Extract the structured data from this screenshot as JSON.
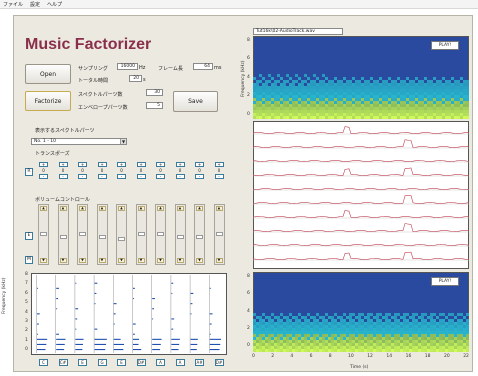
{
  "menu": [
    "ファイル",
    "設定",
    "ヘルプ"
  ],
  "title": "Music Factorizer",
  "buttons": {
    "open": "Open",
    "factorize": "Factorize",
    "save": "Save"
  },
  "params": [
    {
      "label": "サンプリング",
      "value": "16000",
      "unit": "Hz"
    },
    {
      "label": "フレーム長",
      "value": "64",
      "unit": "ms"
    },
    {
      "label": "トータル時間",
      "value": "20",
      "unit": "s"
    },
    {
      "label": "スペクトルパーツ数",
      "value": "30"
    },
    {
      "label": "エンベロープパーツ数",
      "value": "5"
    }
  ],
  "select_label": "表示するスペクトルパーツ",
  "select_value": "No. 1 - 10",
  "transpose_label": "トランスポーズ",
  "transpose_values": [
    "0",
    "0",
    "0",
    "0",
    "0",
    "0",
    "0",
    "0",
    "0",
    "0"
  ],
  "transpose_reset": "R",
  "volume_label": "ボリュームコントロール",
  "volume_buttons": [
    "E",
    "M"
  ],
  "volume_levels": [
    0.55,
    0.5,
    0.55,
    0.5,
    0.45,
    0.55,
    0.55,
    0.5,
    0.5,
    0.55
  ],
  "file_path": "Tut16k\\02-AudioTrack.wav",
  "play_label": "PLAY!",
  "notes": [
    "C",
    "C#",
    "E",
    "G",
    "E",
    "D#",
    "A",
    "A",
    "A#",
    "D#"
  ],
  "spectral_axis": {
    "ylabel": "Frequency (kHz)",
    "ticks": [
      "8",
      "7",
      "6",
      "5",
      "4",
      "3",
      "2",
      "1",
      "0"
    ]
  },
  "spec_axis": {
    "ylabel": "Frequency (kHz)",
    "ticks": [
      "8",
      "6",
      "4",
      "2",
      "0"
    ]
  },
  "time_axis": {
    "xlabel": "Time (s)",
    "ticks": [
      "0",
      "2",
      "4",
      "6",
      "8",
      "10",
      "12",
      "14",
      "16",
      "18",
      "20",
      "22"
    ]
  },
  "colors": {
    "title": "#8a2f4a",
    "spec_bg": "#2a4aa0",
    "trace": "#c04050",
    "bar": "#2050b0"
  }
}
